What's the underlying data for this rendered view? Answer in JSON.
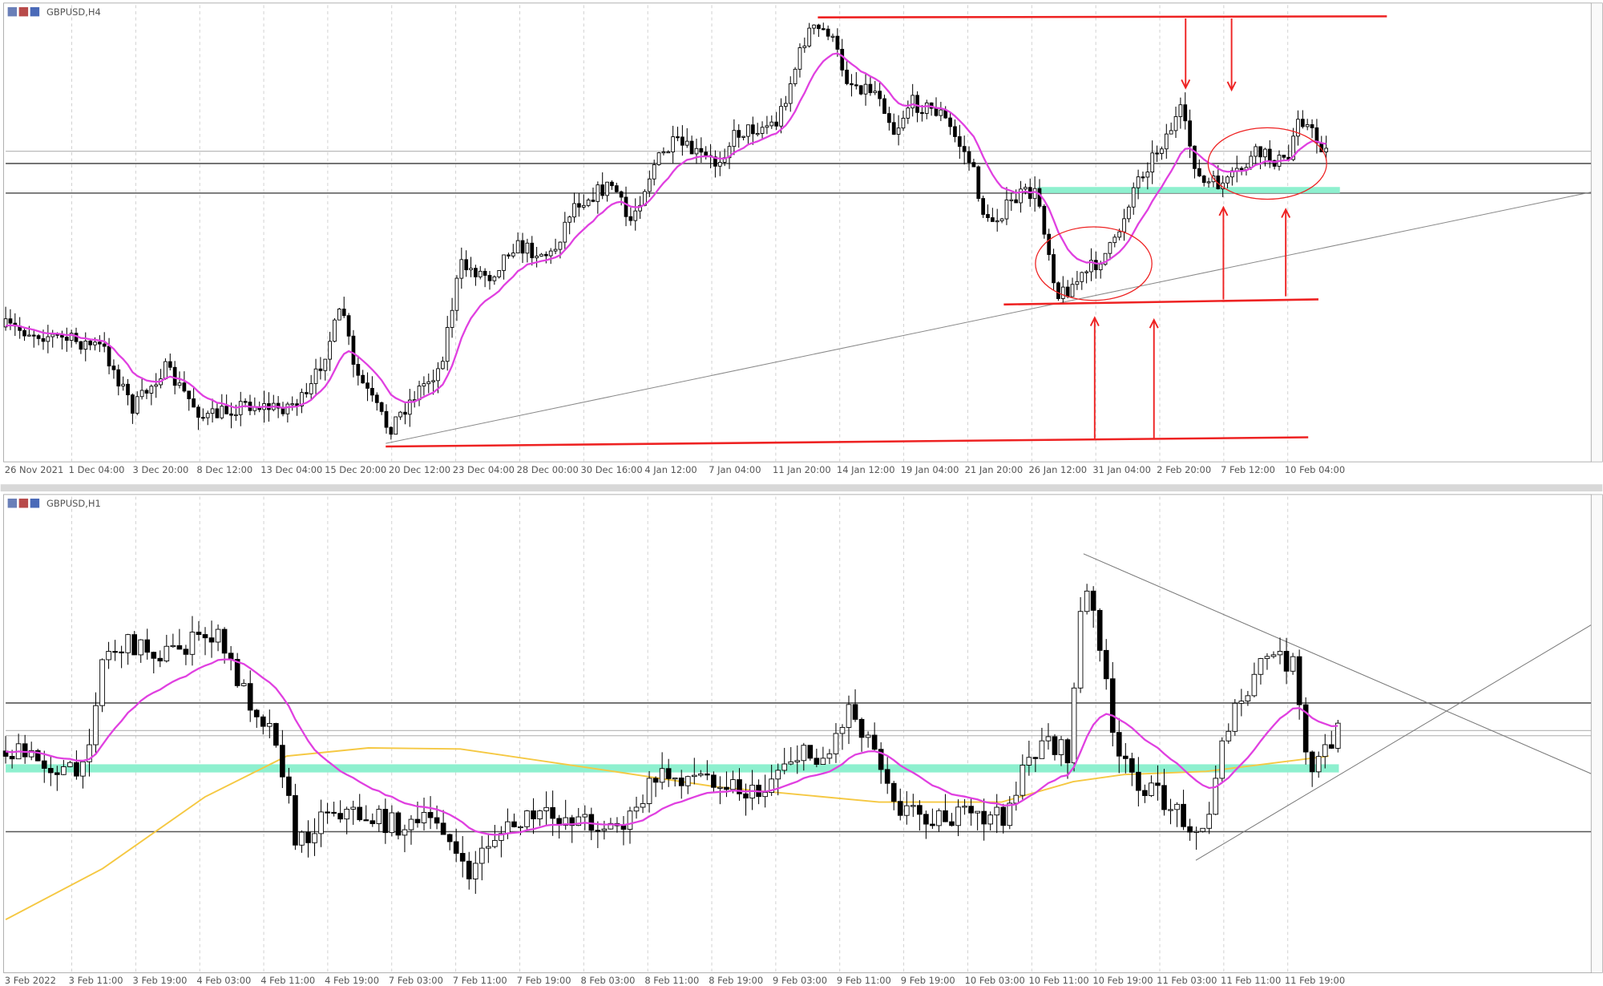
{
  "top_panel": {
    "title": "GBPUSD,H4",
    "time_labels": [
      "26 Nov 2021",
      "1 Dec 04:00",
      "3 Dec 20:00",
      "8 Dec 12:00",
      "13 Dec 04:00",
      "15 Dec 20:00",
      "20 Dec 12:00",
      "23 Dec 04:00",
      "28 Dec 00:00",
      "30 Dec 16:00",
      "4 Jan 12:00",
      "7 Jan 04:00",
      "11 Jan 20:00",
      "14 Jan 12:00",
      "19 Jan 04:00",
      "21 Jan 20:00",
      "26 Jan 12:00",
      "31 Jan 04:00",
      "2 Feb 20:00",
      "7 Feb 12:00",
      "10 Feb 04:00"
    ]
  },
  "bottom_panel": {
    "title": "GBPUSD,H1",
    "time_labels": [
      "3 Feb 2022",
      "3 Feb 11:00",
      "3 Feb 19:00",
      "4 Feb 03:00",
      "4 Feb 11:00",
      "4 Feb 19:00",
      "7 Feb 03:00",
      "7 Feb 11:00",
      "7 Feb 19:00",
      "8 Feb 03:00",
      "8 Feb 11:00",
      "8 Feb 19:00",
      "9 Feb 03:00",
      "9 Feb 11:00",
      "9 Feb 19:00",
      "10 Feb 03:00",
      "10 Feb 11:00",
      "10 Feb 19:00",
      "11 Feb 03:00",
      "11 Feb 11:00",
      "11 Feb 19:00"
    ]
  }
}
